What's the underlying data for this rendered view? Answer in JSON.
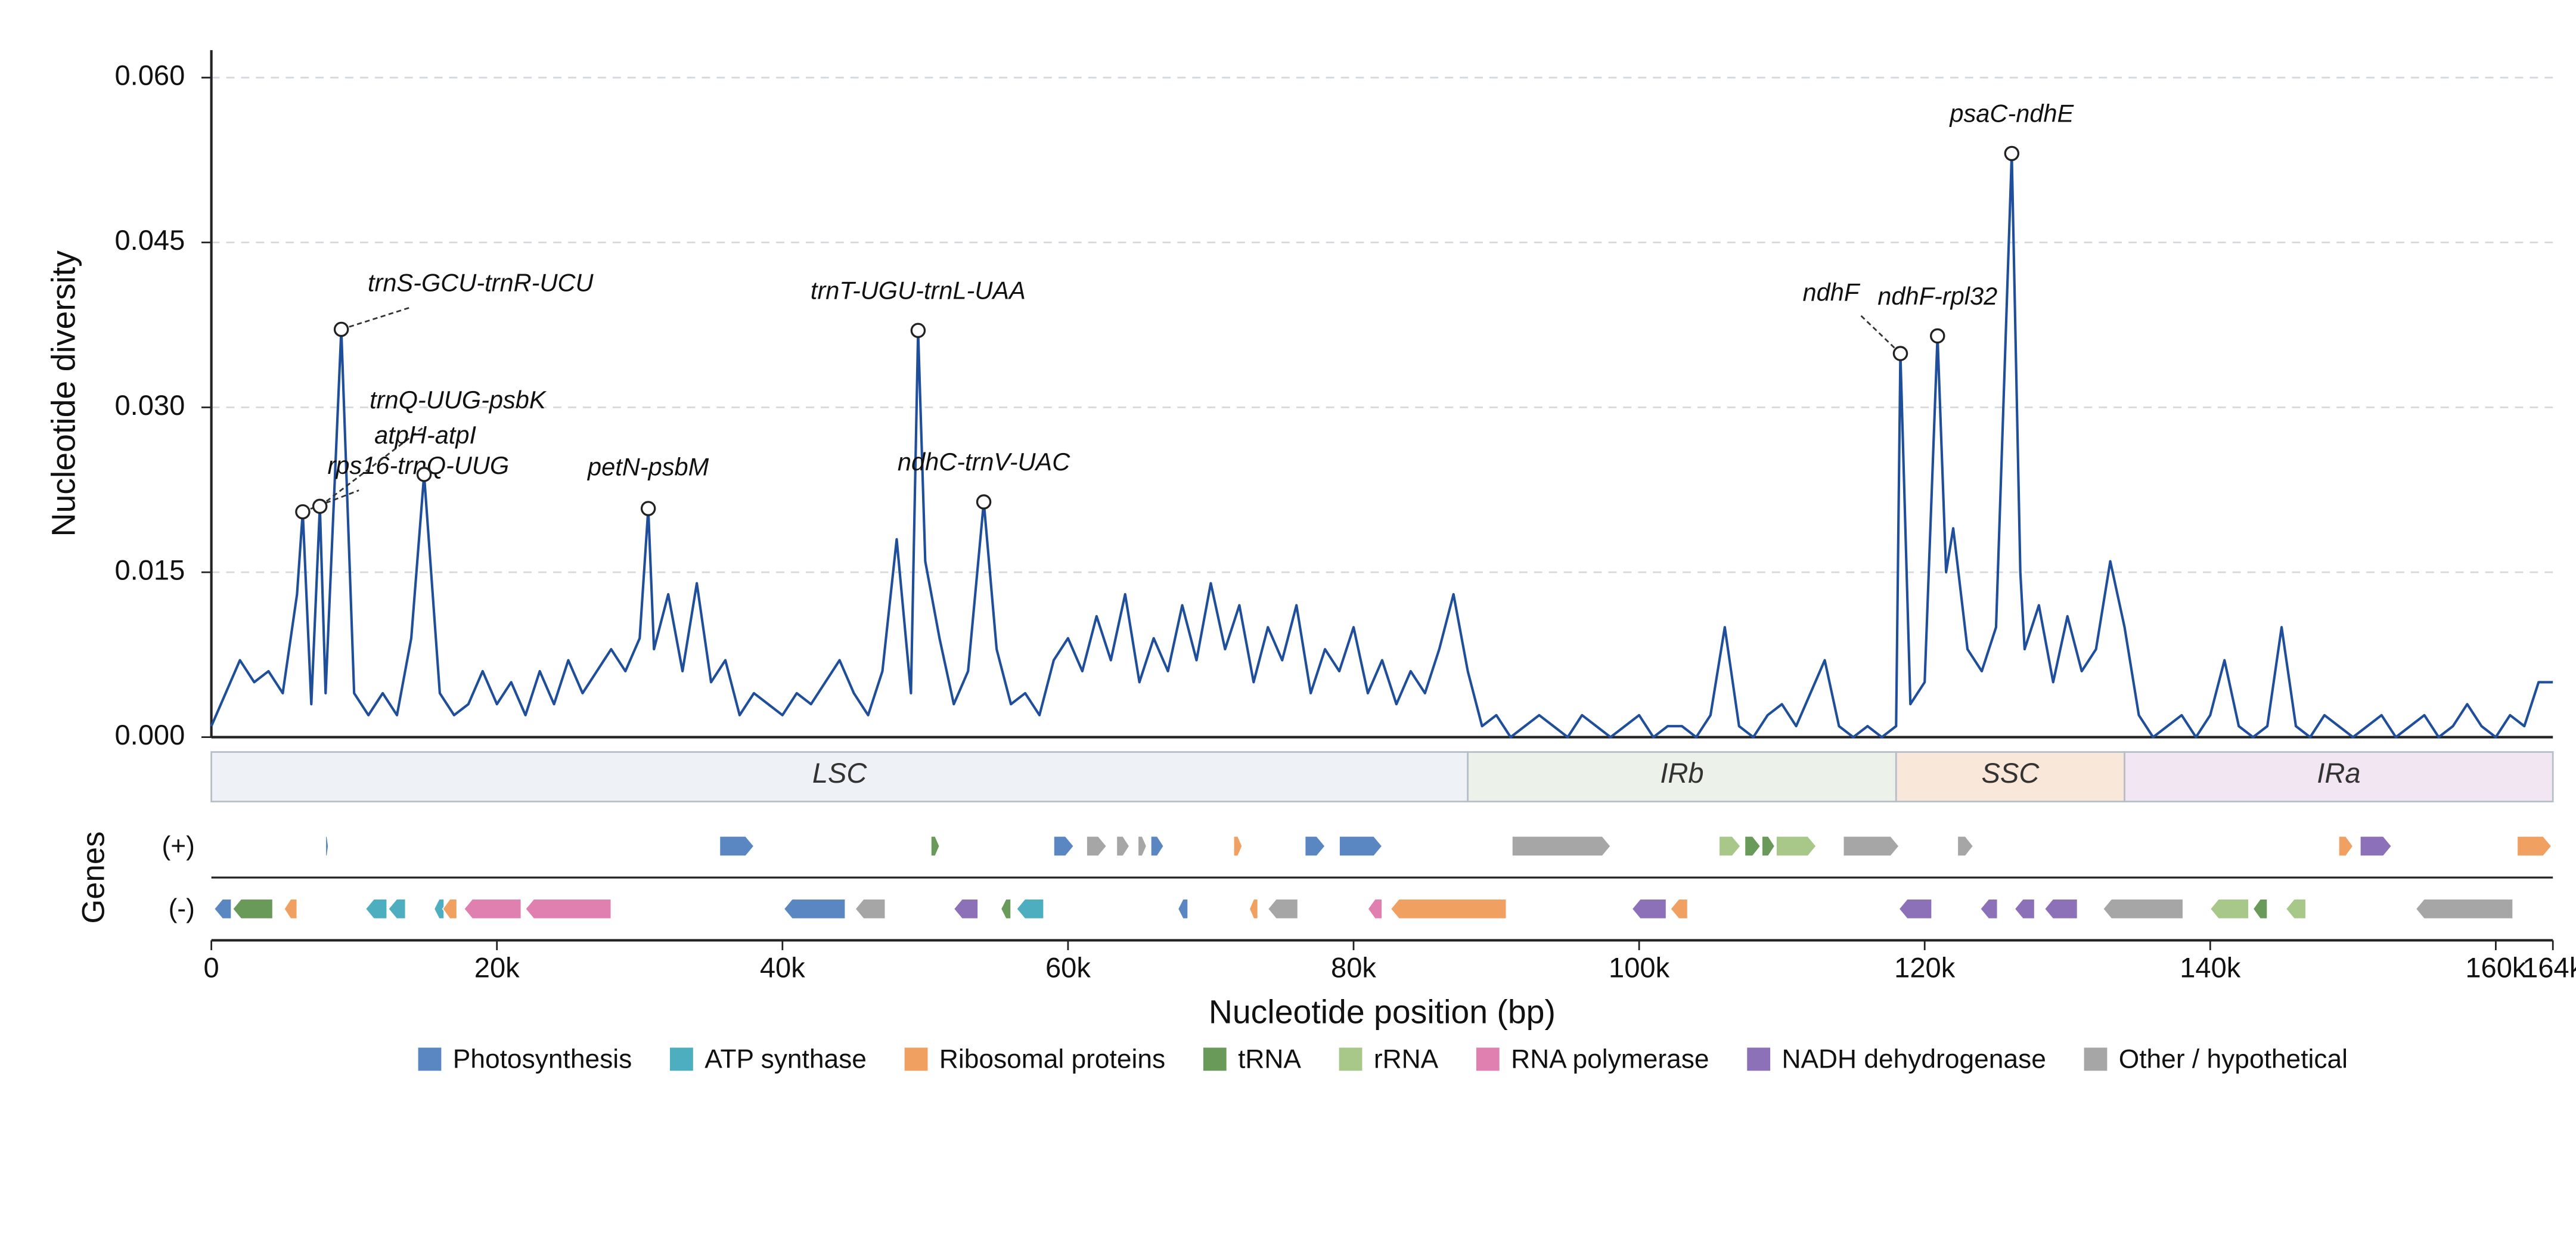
{
  "chart_data": {
    "type": "line",
    "xlabel": "Nucleotide position (bp)",
    "ylabel": "Nucleotide diversity",
    "track_label": "Genes",
    "plus_label": "(+)",
    "minus_label": "(-)",
    "color": "#1f4e9a",
    "grid": true,
    "xlim": [
      0,
      164000
    ],
    "ylim": [
      0,
      0.0625
    ],
    "xticks": [
      0,
      {
        "value": 20000,
        "label": "20k"
      },
      {
        "value": 40000,
        "label": "40k"
      },
      {
        "value": 60000,
        "label": "60k"
      },
      {
        "value": 80000,
        "label": "80k"
      },
      {
        "value": 100000,
        "label": "100k"
      },
      {
        "value": 120000,
        "label": "120k"
      },
      {
        "value": 140000,
        "label": "140k"
      },
      {
        "value": 160000,
        "label": "160k"
      },
      {
        "value": 164000,
        "label": "164k"
      }
    ],
    "yticks": [
      {
        "value": 0,
        "label": "0.000"
      },
      {
        "value": 0.015,
        "label": "0.015"
      },
      {
        "value": 0.03,
        "label": "0.030"
      },
      {
        "value": 0.045,
        "label": "0.045"
      },
      {
        "value": 0.06,
        "label": "0.060"
      }
    ],
    "x": [
      0,
      1000,
      2000,
      3000,
      4000,
      5000,
      6000,
      6400,
      7000,
      7600,
      8000,
      9100,
      10000,
      11000,
      12000,
      13000,
      14000,
      14900,
      16000,
      17000,
      18000,
      19000,
      20000,
      21000,
      22000,
      23000,
      24000,
      25000,
      26000,
      27000,
      28000,
      29000,
      30000,
      30600,
      31000,
      32000,
      33000,
      34000,
      35000,
      36000,
      37000,
      38000,
      39000,
      40000,
      41000,
      42000,
      43000,
      44000,
      45000,
      46000,
      47000,
      48000,
      49000,
      49500,
      50000,
      51000,
      52000,
      53000,
      54100,
      55000,
      56000,
      57000,
      58000,
      59000,
      60000,
      61000,
      62000,
      63000,
      64000,
      65000,
      66000,
      67000,
      68000,
      69000,
      70000,
      71000,
      72000,
      73000,
      74000,
      75000,
      76000,
      77000,
      78000,
      79000,
      80000,
      81000,
      82000,
      83000,
      84000,
      85000,
      86000,
      87000,
      88000,
      89000,
      90000,
      91000,
      92000,
      93000,
      94000,
      95000,
      96000,
      97000,
      98000,
      99000,
      100000,
      101000,
      102000,
      103000,
      104000,
      105000,
      106000,
      107000,
      108000,
      109000,
      110000,
      111000,
      112000,
      113000,
      114000,
      115000,
      116000,
      117000,
      118000,
      118300,
      119000,
      120000,
      120900,
      121500,
      122000,
      123000,
      124000,
      125000,
      126100,
      126700,
      127000,
      128000,
      129000,
      130000,
      131000,
      132000,
      133000,
      134000,
      135000,
      136000,
      137000,
      138000,
      139000,
      140000,
      141000,
      142000,
      143000,
      144000,
      145000,
      146000,
      147000,
      148000,
      149000,
      150000,
      151000,
      152000,
      153000,
      154000,
      155000,
      156000,
      157000,
      158000,
      159000,
      160000,
      161000,
      162000,
      163000,
      164000
    ],
    "values": [
      0.001,
      0.004,
      0.007,
      0.005,
      0.006,
      0.004,
      0.013,
      0.0205,
      0.003,
      0.021,
      0.004,
      0.0371,
      0.004,
      0.002,
      0.004,
      0.002,
      0.009,
      0.0239,
      0.004,
      0.002,
      0.003,
      0.006,
      0.003,
      0.005,
      0.002,
      0.006,
      0.003,
      0.007,
      0.004,
      0.006,
      0.008,
      0.006,
      0.009,
      0.0208,
      0.008,
      0.013,
      0.006,
      0.014,
      0.005,
      0.007,
      0.002,
      0.004,
      0.003,
      0.002,
      0.004,
      0.003,
      0.005,
      0.007,
      0.004,
      0.002,
      0.006,
      0.018,
      0.004,
      0.037,
      0.016,
      0.009,
      0.003,
      0.006,
      0.0214,
      0.008,
      0.003,
      0.004,
      0.002,
      0.007,
      0.009,
      0.006,
      0.011,
      0.007,
      0.013,
      0.005,
      0.009,
      0.006,
      0.012,
      0.007,
      0.014,
      0.008,
      0.012,
      0.005,
      0.01,
      0.007,
      0.012,
      0.004,
      0.008,
      0.006,
      0.01,
      0.004,
      0.007,
      0.003,
      0.006,
      0.004,
      0.008,
      0.013,
      0.006,
      0.001,
      0.002,
      0,
      0.001,
      0.002,
      0.001,
      0,
      0.002,
      0.001,
      0,
      0.001,
      0.002,
      0,
      0.001,
      0.001,
      0,
      0.002,
      0.01,
      0.001,
      0,
      0.002,
      0.003,
      0.001,
      0.004,
      0.007,
      0.001,
      0,
      0.001,
      0,
      0.001,
      0.0349,
      0.003,
      0.005,
      0.0365,
      0.015,
      0.019,
      0.008,
      0.006,
      0.01,
      0.0531,
      0.015,
      0.008,
      0.012,
      0.005,
      0.011,
      0.006,
      0.008,
      0.016,
      0.01,
      0.002,
      0,
      0.001,
      0.002,
      0,
      0.002,
      0.007,
      0.001,
      0,
      0.001,
      0.01,
      0.001,
      0,
      0.002,
      0.001,
      0,
      0.001,
      0.002,
      0,
      0.001,
      0.002,
      0,
      0.001,
      0.003,
      0.001,
      0,
      0.002,
      0.001,
      0.005,
      0.005
    ],
    "annotations": [
      {
        "text": "rps16-trnQ-UUG",
        "x": 6400,
        "y": 0.0205
      },
      {
        "text": "atpH-atpI",
        "x": 7600,
        "y": 0.021
      },
      {
        "text": "trnS-GCU-trnR-UCU",
        "x": 9100,
        "y": 0.0371
      },
      {
        "text": "trnQ-UUG-psbK",
        "x": 14900,
        "y": 0.0239
      },
      {
        "text": "petN-psbM",
        "x": 30600,
        "y": 0.0208
      },
      {
        "text": "trnT-UGU-trnL-UAA",
        "x": 49500,
        "y": 0.037
      },
      {
        "text": "ndhC-trnV-UAC",
        "x": 54100,
        "y": 0.0214
      },
      {
        "text": "ndhF",
        "x": 118300,
        "y": 0.0349
      },
      {
        "text": "ndhF-rpl32",
        "x": 120900,
        "y": 0.0365
      },
      {
        "text": "psaC-ndhE",
        "x": 126100,
        "y": 0.0531
      }
    ],
    "regions": [
      {
        "name": "LSC",
        "start": 0,
        "end": 88000,
        "color": "#eef2f6"
      },
      {
        "name": "IRb",
        "start": 88000,
        "end": 118000,
        "color": "#ecf2ea"
      },
      {
        "name": "SSC",
        "start": 118000,
        "end": 134000,
        "color": "#f9e8d9"
      },
      {
        "name": "IRa",
        "start": 134000,
        "end": 164000,
        "color": "#f2e6f2"
      }
    ],
    "gene_groups": [
      {
        "name": "Photosynthesis",
        "color": "#5a87c1",
        "plus": [
          [
            8000,
            8200
          ],
          [
            35600,
            38000
          ],
          [
            59000,
            60400
          ],
          [
            65800,
            66700
          ],
          [
            76600,
            78000
          ],
          [
            79000,
            82000
          ]
        ],
        "minus": [
          [
            200,
            1400
          ],
          [
            40100,
            44400
          ],
          [
            67700,
            68400
          ]
        ]
      },
      {
        "name": "ATP synthase",
        "color": "#4daec0",
        "plus": [],
        "minus": [
          [
            10800,
            12300
          ],
          [
            12400,
            13600
          ],
          [
            15600,
            16300
          ],
          [
            56400,
            58300
          ]
        ]
      },
      {
        "name": "Ribosomal proteins",
        "color": "#f0a060",
        "plus": [
          [
            71600,
            72200
          ],
          [
            149000,
            150000
          ],
          [
            161500,
            163900
          ]
        ],
        "minus": [
          [
            5100,
            6000
          ],
          [
            16200,
            17200
          ],
          [
            72700,
            73300
          ],
          [
            82600,
            90700
          ],
          [
            102200,
            103400
          ]
        ]
      },
      {
        "name": "tRNA",
        "color": "#6a9a5a",
        "plus": [
          [
            50400,
            51000
          ],
          [
            107400,
            108500
          ],
          [
            108600,
            109500
          ]
        ],
        "minus": [
          [
            1500,
            4300
          ],
          [
            55300,
            56000
          ],
          [
            143000,
            144000
          ]
        ]
      },
      {
        "name": "rRNA",
        "color": "#a8c88a",
        "plus": [
          [
            105600,
            107100
          ],
          [
            109600,
            112400
          ]
        ],
        "minus": [
          [
            140000,
            142700
          ],
          [
            145300,
            146700
          ]
        ]
      },
      {
        "name": "RNA polymerase",
        "color": "#e080b0",
        "plus": [],
        "minus": [
          [
            17700,
            21700
          ],
          [
            22000,
            28000
          ],
          [
            81000,
            82000
          ]
        ]
      },
      {
        "name": "NADH dehydrogenase",
        "color": "#8c70b8",
        "plus": [
          [
            150500,
            152700
          ]
        ],
        "minus": [
          [
            52000,
            53700
          ],
          [
            99500,
            101900
          ],
          [
            118200,
            120500
          ],
          [
            123900,
            125100
          ],
          [
            126300,
            127700
          ],
          [
            128400,
            130700
          ]
        ]
      },
      {
        "name": "Other / hypothetical",
        "color": "#a6a6a6",
        "plus": [
          [
            61300,
            62700
          ],
          [
            63400,
            64300
          ],
          [
            64900,
            65500
          ],
          [
            91100,
            98000
          ],
          [
            114300,
            118200
          ],
          [
            122300,
            123400
          ]
        ],
        "minus": [
          [
            45100,
            47200
          ],
          [
            74000,
            76100
          ],
          [
            132500,
            138100
          ],
          [
            154400,
            161200
          ]
        ]
      }
    ]
  }
}
